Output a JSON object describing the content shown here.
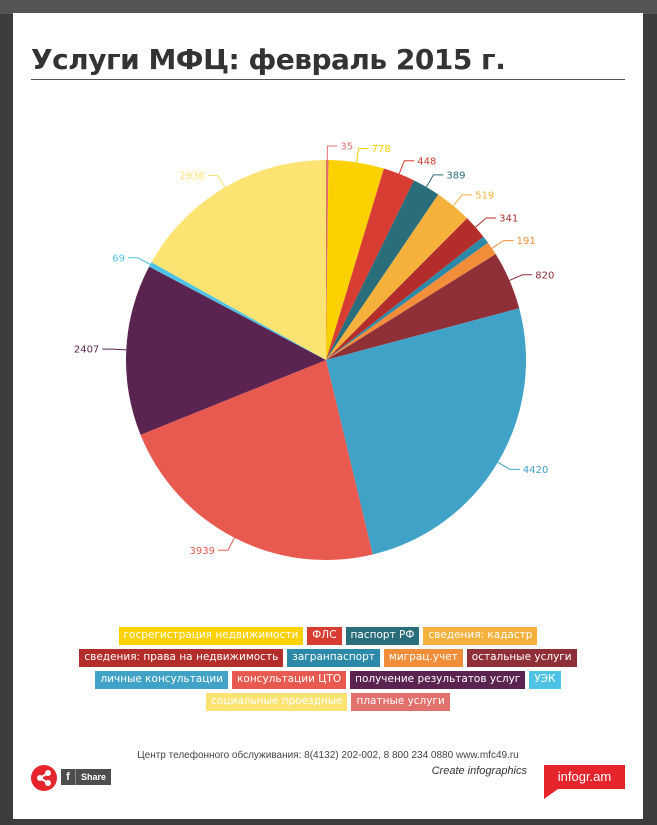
{
  "title": "Услуги МФЦ: февраль 2015 г.",
  "chart_data": {
    "type": "pie",
    "title": "Услуги МФЦ: февраль 2015 г.",
    "series": [
      {
        "name": "платные услуги",
        "value": 35,
        "color": "#e2716e"
      },
      {
        "name": "госрегистрация недвижимости",
        "value": 778,
        "color": "#fdd000"
      },
      {
        "name": "ФЛС",
        "value": 448,
        "color": "#d73d32"
      },
      {
        "name": "паспорт РФ",
        "value": 389,
        "color": "#2a6d7b"
      },
      {
        "name": "сведения: кадастр",
        "value": 519,
        "color": "#f4b23c"
      },
      {
        "name": "сведения: права на недвижимость",
        "value": 341,
        "color": "#b32e2a"
      },
      {
        "name": "загранпаспорт",
        "value": 104,
        "color": "#2c89a8"
      },
      {
        "name": "миграц.учет",
        "value": 191,
        "color": "#f28e3a"
      },
      {
        "name": "остальные услуги",
        "value": 820,
        "color": "#8f2f37"
      },
      {
        "name": "личные консультации",
        "value": 4420,
        "color": "#41a2c7"
      },
      {
        "name": "консультации ЦТО",
        "value": 3939,
        "color": "#e85a4f"
      },
      {
        "name": "получение результатов услуг",
        "value": 2407,
        "color": "#5b2450"
      },
      {
        "name": "УЭК",
        "value": 69,
        "color": "#4ec3e6"
      },
      {
        "name": "социальные проездные",
        "value": 2936,
        "color": "#fde372"
      }
    ],
    "data_labels": [
      "35",
      "778",
      "448",
      "389",
      "519",
      "341",
      "",
      "191",
      "820",
      "4420",
      "3939",
      "2407",
      "69",
      "2936"
    ],
    "legend_position": "bottom",
    "legend_order": [
      "госрегистрация недвижимости",
      "ФЛС",
      "паспорт РФ",
      "сведения: кадастр",
      "сведения: права на недвижимость",
      "загранпаспорт",
      "миграц.учет",
      "остальные услуги",
      "личные консультации",
      "консультации ЦТО",
      "получение результатов услуг",
      "УЭК",
      "социальные проездные",
      "платные услуги"
    ]
  },
  "footer": {
    "contact": "Центр телефонного обслуживания: 8(4132) 202-002, 8 800 234 0880     www.mfc49.ru",
    "create_link": "Create infographics",
    "infogram_label": "infogr.am",
    "share_label": "Share",
    "facebook_glyph": "f",
    "share_icon": "share-icon",
    "facebook_icon": "facebook-icon"
  }
}
